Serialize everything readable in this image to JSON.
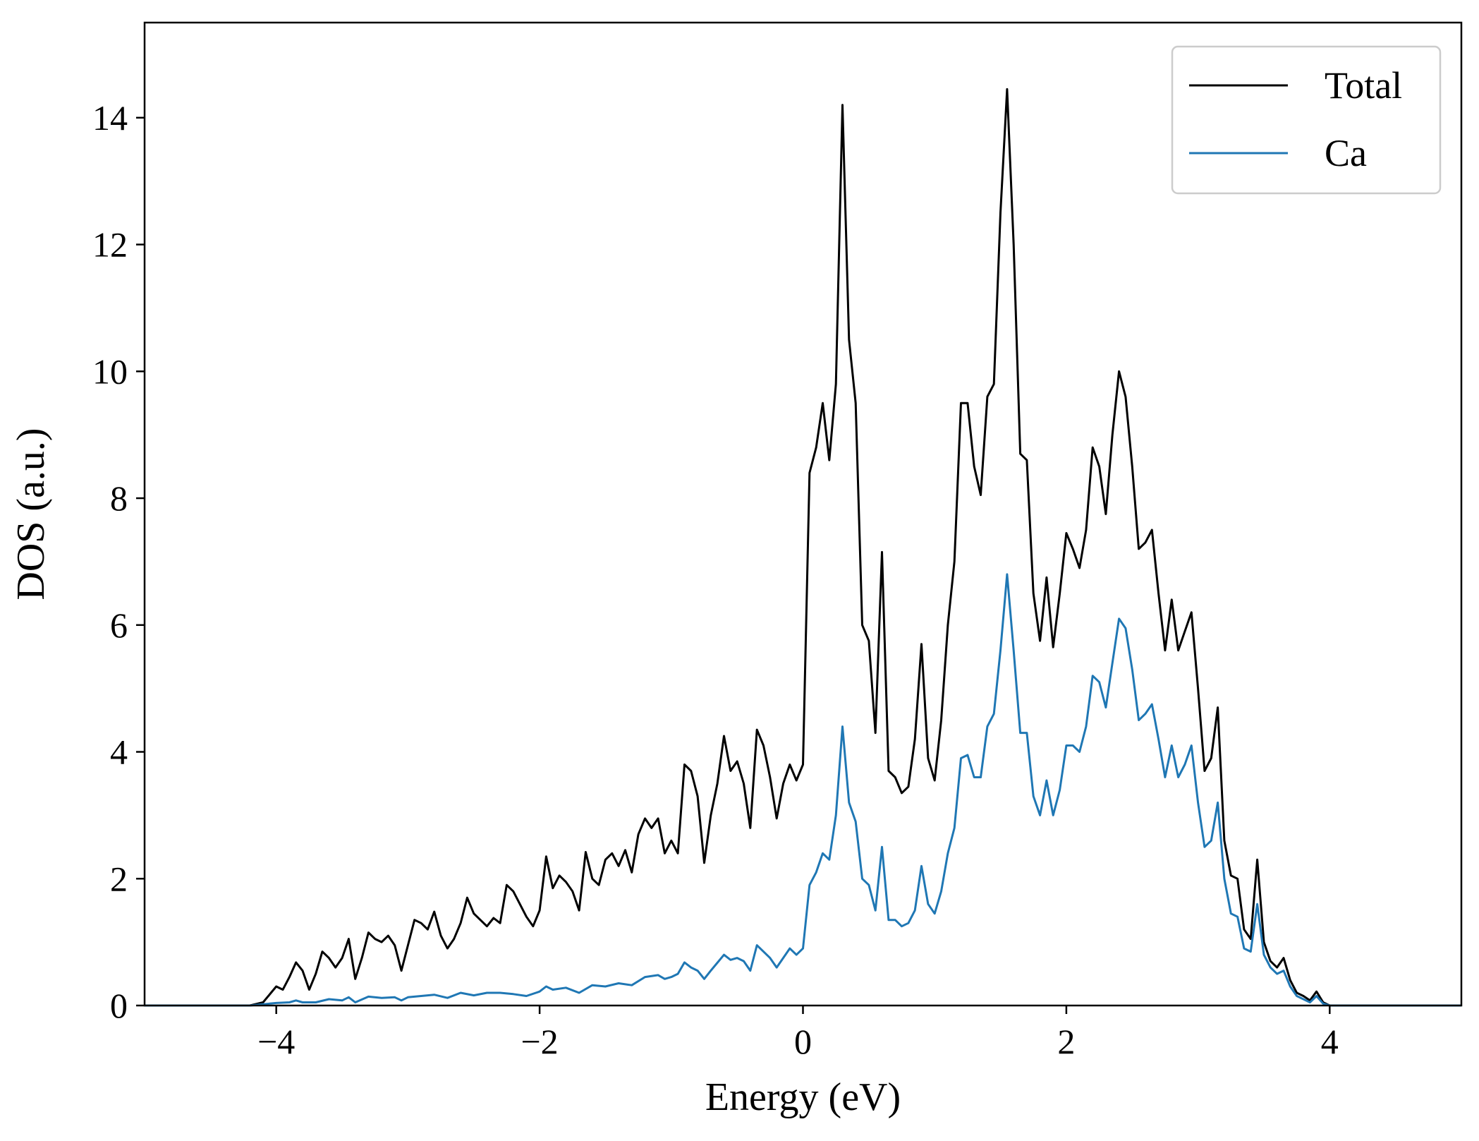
{
  "chart_data": {
    "type": "line",
    "title": "",
    "xlabel": "Energy (eV)",
    "ylabel": "DOS (a.u.)",
    "xlim": [
      -5,
      5
    ],
    "ylim": [
      0,
      15.5
    ],
    "xticks": [
      -4,
      -2,
      0,
      2,
      4
    ],
    "xtick_labels": [
      "−4",
      "−2",
      "0",
      "2",
      "4"
    ],
    "yticks": [
      0,
      2,
      4,
      6,
      8,
      10,
      12,
      14
    ],
    "ytick_labels": [
      "0",
      "2",
      "4",
      "6",
      "8",
      "10",
      "12",
      "14"
    ],
    "grid": false,
    "legend": "top-right",
    "series": [
      {
        "name": "Total",
        "color": "#000000",
        "points": [
          [
            -5.0,
            0
          ],
          [
            -4.2,
            0
          ],
          [
            -4.1,
            0.05
          ],
          [
            -4.0,
            0.3
          ],
          [
            -3.95,
            0.25
          ],
          [
            -3.9,
            0.45
          ],
          [
            -3.85,
            0.68
          ],
          [
            -3.8,
            0.55
          ],
          [
            -3.75,
            0.25
          ],
          [
            -3.7,
            0.5
          ],
          [
            -3.65,
            0.85
          ],
          [
            -3.6,
            0.75
          ],
          [
            -3.55,
            0.6
          ],
          [
            -3.5,
            0.75
          ],
          [
            -3.45,
            1.05
          ],
          [
            -3.4,
            0.42
          ],
          [
            -3.35,
            0.75
          ],
          [
            -3.3,
            1.15
          ],
          [
            -3.25,
            1.05
          ],
          [
            -3.2,
            1.0
          ],
          [
            -3.15,
            1.1
          ],
          [
            -3.1,
            0.95
          ],
          [
            -3.05,
            0.55
          ],
          [
            -3.0,
            0.95
          ],
          [
            -2.95,
            1.35
          ],
          [
            -2.9,
            1.3
          ],
          [
            -2.85,
            1.2
          ],
          [
            -2.8,
            1.48
          ],
          [
            -2.75,
            1.1
          ],
          [
            -2.7,
            0.9
          ],
          [
            -2.65,
            1.05
          ],
          [
            -2.6,
            1.3
          ],
          [
            -2.55,
            1.7
          ],
          [
            -2.5,
            1.45
          ],
          [
            -2.45,
            1.35
          ],
          [
            -2.4,
            1.25
          ],
          [
            -2.35,
            1.38
          ],
          [
            -2.3,
            1.3
          ],
          [
            -2.25,
            1.9
          ],
          [
            -2.2,
            1.8
          ],
          [
            -2.15,
            1.6
          ],
          [
            -2.1,
            1.4
          ],
          [
            -2.05,
            1.25
          ],
          [
            -2.0,
            1.5
          ],
          [
            -1.95,
            2.35
          ],
          [
            -1.9,
            1.85
          ],
          [
            -1.85,
            2.05
          ],
          [
            -1.8,
            1.95
          ],
          [
            -1.75,
            1.8
          ],
          [
            -1.7,
            1.5
          ],
          [
            -1.65,
            2.42
          ],
          [
            -1.6,
            2.0
          ],
          [
            -1.55,
            1.9
          ],
          [
            -1.5,
            2.3
          ],
          [
            -1.45,
            2.4
          ],
          [
            -1.4,
            2.2
          ],
          [
            -1.35,
            2.45
          ],
          [
            -1.3,
            2.1
          ],
          [
            -1.25,
            2.7
          ],
          [
            -1.2,
            2.95
          ],
          [
            -1.15,
            2.8
          ],
          [
            -1.1,
            2.95
          ],
          [
            -1.05,
            2.4
          ],
          [
            -1.0,
            2.6
          ],
          [
            -0.95,
            2.4
          ],
          [
            -0.9,
            3.8
          ],
          [
            -0.85,
            3.7
          ],
          [
            -0.8,
            3.3
          ],
          [
            -0.75,
            2.25
          ],
          [
            -0.7,
            3.0
          ],
          [
            -0.65,
            3.5
          ],
          [
            -0.6,
            4.25
          ],
          [
            -0.55,
            3.7
          ],
          [
            -0.5,
            3.85
          ],
          [
            -0.45,
            3.5
          ],
          [
            -0.4,
            2.8
          ],
          [
            -0.35,
            4.35
          ],
          [
            -0.3,
            4.1
          ],
          [
            -0.25,
            3.6
          ],
          [
            -0.2,
            2.95
          ],
          [
            -0.15,
            3.5
          ],
          [
            -0.1,
            3.8
          ],
          [
            -0.05,
            3.55
          ],
          [
            0.0,
            3.8
          ],
          [
            0.05,
            8.4
          ],
          [
            0.1,
            8.8
          ],
          [
            0.15,
            9.5
          ],
          [
            0.2,
            8.6
          ],
          [
            0.25,
            9.8
          ],
          [
            0.3,
            14.2
          ],
          [
            0.35,
            10.5
          ],
          [
            0.4,
            9.5
          ],
          [
            0.45,
            6.0
          ],
          [
            0.5,
            5.75
          ],
          [
            0.55,
            4.3
          ],
          [
            0.6,
            7.15
          ],
          [
            0.65,
            3.7
          ],
          [
            0.7,
            3.6
          ],
          [
            0.75,
            3.35
          ],
          [
            0.8,
            3.45
          ],
          [
            0.85,
            4.2
          ],
          [
            0.9,
            5.7
          ],
          [
            0.95,
            3.9
          ],
          [
            1.0,
            3.55
          ],
          [
            1.05,
            4.5
          ],
          [
            1.1,
            6.0
          ],
          [
            1.15,
            7.0
          ],
          [
            1.2,
            9.5
          ],
          [
            1.25,
            9.5
          ],
          [
            1.3,
            8.5
          ],
          [
            1.35,
            8.05
          ],
          [
            1.4,
            9.6
          ],
          [
            1.45,
            9.8
          ],
          [
            1.5,
            12.5
          ],
          [
            1.55,
            14.45
          ],
          [
            1.6,
            12.0
          ],
          [
            1.65,
            8.7
          ],
          [
            1.7,
            8.6
          ],
          [
            1.75,
            6.5
          ],
          [
            1.8,
            5.75
          ],
          [
            1.85,
            6.75
          ],
          [
            1.9,
            5.65
          ],
          [
            1.95,
            6.5
          ],
          [
            2.0,
            7.45
          ],
          [
            2.05,
            7.2
          ],
          [
            2.1,
            6.9
          ],
          [
            2.15,
            7.5
          ],
          [
            2.2,
            8.8
          ],
          [
            2.25,
            8.5
          ],
          [
            2.3,
            7.75
          ],
          [
            2.35,
            9.0
          ],
          [
            2.4,
            10.0
          ],
          [
            2.45,
            9.6
          ],
          [
            2.5,
            8.5
          ],
          [
            2.55,
            7.2
          ],
          [
            2.6,
            7.3
          ],
          [
            2.65,
            7.5
          ],
          [
            2.7,
            6.5
          ],
          [
            2.75,
            5.6
          ],
          [
            2.8,
            6.4
          ],
          [
            2.85,
            5.6
          ],
          [
            2.9,
            5.9
          ],
          [
            2.95,
            6.2
          ],
          [
            3.0,
            5.0
          ],
          [
            3.05,
            3.7
          ],
          [
            3.1,
            3.9
          ],
          [
            3.15,
            4.7
          ],
          [
            3.2,
            2.6
          ],
          [
            3.25,
            2.05
          ],
          [
            3.3,
            2.0
          ],
          [
            3.35,
            1.2
          ],
          [
            3.4,
            1.05
          ],
          [
            3.45,
            2.3
          ],
          [
            3.5,
            1.0
          ],
          [
            3.55,
            0.7
          ],
          [
            3.6,
            0.6
          ],
          [
            3.65,
            0.75
          ],
          [
            3.7,
            0.4
          ],
          [
            3.75,
            0.2
          ],
          [
            3.8,
            0.15
          ],
          [
            3.85,
            0.08
          ],
          [
            3.9,
            0.22
          ],
          [
            3.95,
            0.05
          ],
          [
            4.0,
            0
          ],
          [
            5.0,
            0
          ]
        ]
      },
      {
        "name": "Ca",
        "color": "#1f77b4",
        "points": [
          [
            -5.0,
            0
          ],
          [
            -4.2,
            0
          ],
          [
            -4.1,
            0.02
          ],
          [
            -4.0,
            0.04
          ],
          [
            -3.9,
            0.05
          ],
          [
            -3.85,
            0.08
          ],
          [
            -3.8,
            0.05
          ],
          [
            -3.7,
            0.05
          ],
          [
            -3.6,
            0.1
          ],
          [
            -3.5,
            0.08
          ],
          [
            -3.45,
            0.13
          ],
          [
            -3.4,
            0.05
          ],
          [
            -3.3,
            0.14
          ],
          [
            -3.2,
            0.12
          ],
          [
            -3.1,
            0.13
          ],
          [
            -3.05,
            0.08
          ],
          [
            -3.0,
            0.13
          ],
          [
            -2.9,
            0.15
          ],
          [
            -2.8,
            0.17
          ],
          [
            -2.7,
            0.12
          ],
          [
            -2.6,
            0.2
          ],
          [
            -2.5,
            0.16
          ],
          [
            -2.4,
            0.2
          ],
          [
            -2.3,
            0.2
          ],
          [
            -2.2,
            0.18
          ],
          [
            -2.1,
            0.15
          ],
          [
            -2.0,
            0.22
          ],
          [
            -1.95,
            0.3
          ],
          [
            -1.9,
            0.25
          ],
          [
            -1.8,
            0.28
          ],
          [
            -1.7,
            0.2
          ],
          [
            -1.6,
            0.32
          ],
          [
            -1.5,
            0.3
          ],
          [
            -1.4,
            0.35
          ],
          [
            -1.3,
            0.32
          ],
          [
            -1.2,
            0.45
          ],
          [
            -1.1,
            0.48
          ],
          [
            -1.05,
            0.42
          ],
          [
            -1.0,
            0.45
          ],
          [
            -0.95,
            0.5
          ],
          [
            -0.9,
            0.68
          ],
          [
            -0.85,
            0.6
          ],
          [
            -0.8,
            0.55
          ],
          [
            -0.75,
            0.42
          ],
          [
            -0.7,
            0.55
          ],
          [
            -0.6,
            0.8
          ],
          [
            -0.55,
            0.72
          ],
          [
            -0.5,
            0.75
          ],
          [
            -0.45,
            0.7
          ],
          [
            -0.4,
            0.55
          ],
          [
            -0.35,
            0.95
          ],
          [
            -0.3,
            0.85
          ],
          [
            -0.25,
            0.75
          ],
          [
            -0.2,
            0.6
          ],
          [
            -0.15,
            0.75
          ],
          [
            -0.1,
            0.9
          ],
          [
            -0.05,
            0.8
          ],
          [
            0.0,
            0.9
          ],
          [
            0.05,
            1.9
          ],
          [
            0.1,
            2.1
          ],
          [
            0.15,
            2.4
          ],
          [
            0.2,
            2.3
          ],
          [
            0.25,
            3.0
          ],
          [
            0.3,
            4.4
          ],
          [
            0.35,
            3.2
          ],
          [
            0.4,
            2.9
          ],
          [
            0.45,
            2.0
          ],
          [
            0.5,
            1.9
          ],
          [
            0.55,
            1.5
          ],
          [
            0.6,
            2.5
          ],
          [
            0.65,
            1.35
          ],
          [
            0.7,
            1.35
          ],
          [
            0.75,
            1.25
          ],
          [
            0.8,
            1.3
          ],
          [
            0.85,
            1.5
          ],
          [
            0.9,
            2.2
          ],
          [
            0.95,
            1.6
          ],
          [
            1.0,
            1.45
          ],
          [
            1.05,
            1.8
          ],
          [
            1.1,
            2.4
          ],
          [
            1.15,
            2.8
          ],
          [
            1.2,
            3.9
          ],
          [
            1.25,
            3.95
          ],
          [
            1.3,
            3.6
          ],
          [
            1.35,
            3.6
          ],
          [
            1.4,
            4.4
          ],
          [
            1.45,
            4.6
          ],
          [
            1.5,
            5.6
          ],
          [
            1.55,
            6.8
          ],
          [
            1.6,
            5.6
          ],
          [
            1.65,
            4.3
          ],
          [
            1.7,
            4.3
          ],
          [
            1.75,
            3.3
          ],
          [
            1.8,
            3.0
          ],
          [
            1.85,
            3.55
          ],
          [
            1.9,
            3.0
          ],
          [
            1.95,
            3.4
          ],
          [
            2.0,
            4.1
          ],
          [
            2.05,
            4.1
          ],
          [
            2.1,
            4.0
          ],
          [
            2.15,
            4.4
          ],
          [
            2.2,
            5.2
          ],
          [
            2.25,
            5.1
          ],
          [
            2.3,
            4.7
          ],
          [
            2.35,
            5.4
          ],
          [
            2.4,
            6.1
          ],
          [
            2.45,
            5.95
          ],
          [
            2.5,
            5.3
          ],
          [
            2.55,
            4.5
          ],
          [
            2.6,
            4.6
          ],
          [
            2.65,
            4.75
          ],
          [
            2.7,
            4.2
          ],
          [
            2.75,
            3.6
          ],
          [
            2.8,
            4.1
          ],
          [
            2.85,
            3.6
          ],
          [
            2.9,
            3.8
          ],
          [
            2.95,
            4.1
          ],
          [
            3.0,
            3.2
          ],
          [
            3.05,
            2.5
          ],
          [
            3.1,
            2.6
          ],
          [
            3.15,
            3.2
          ],
          [
            3.2,
            2.0
          ],
          [
            3.25,
            1.45
          ],
          [
            3.3,
            1.4
          ],
          [
            3.35,
            0.9
          ],
          [
            3.4,
            0.85
          ],
          [
            3.45,
            1.6
          ],
          [
            3.5,
            0.8
          ],
          [
            3.55,
            0.6
          ],
          [
            3.6,
            0.5
          ],
          [
            3.65,
            0.55
          ],
          [
            3.7,
            0.3
          ],
          [
            3.75,
            0.15
          ],
          [
            3.8,
            0.1
          ],
          [
            3.85,
            0.05
          ],
          [
            3.9,
            0.15
          ],
          [
            3.95,
            0.03
          ],
          [
            4.0,
            0
          ],
          [
            5.0,
            0
          ]
        ]
      }
    ]
  }
}
